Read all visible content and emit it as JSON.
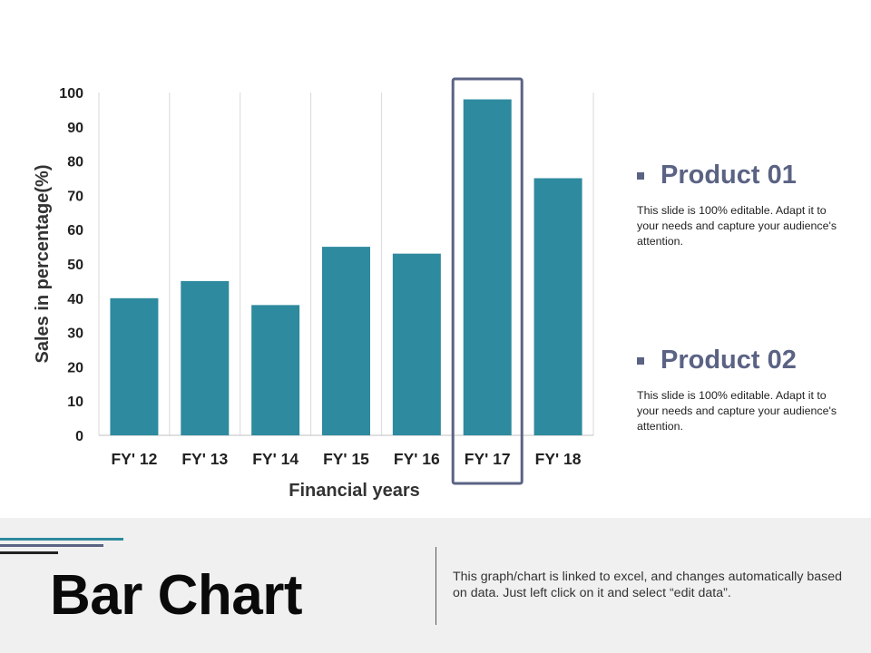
{
  "chart_data": {
    "type": "bar",
    "categories": [
      "FY' 12",
      "FY' 13",
      "FY' 14",
      "FY' 15",
      "FY' 16",
      "FY' 17",
      "FY' 18"
    ],
    "values": [
      40,
      45,
      38,
      55,
      53,
      98,
      75
    ],
    "xlabel": "Financial years",
    "ylabel": "Sales in percentage(%)",
    "ylim": [
      0,
      100
    ],
    "yticks": [
      0,
      10,
      20,
      30,
      40,
      50,
      60,
      70,
      80,
      90,
      100
    ],
    "highlight_category": "FY' 17",
    "grid": "vertical",
    "bar_color": "#2e8a9e",
    "highlight_color": "#5b6384"
  },
  "legend": [
    {
      "title": "Product 01",
      "description": "This slide is 100% editable. Adapt it to your needs and capture your audience's attention."
    },
    {
      "title": "Product 02",
      "description": "This slide is 100% editable. Adapt it to your needs and capture your audience's attention."
    }
  ],
  "footer": {
    "title": "Bar Chart",
    "description": "This graph/chart is linked to excel, and changes automatically based on data. Just left click on it and select “edit data”."
  },
  "colors": {
    "accent": "#2e8a9e",
    "secondary": "#5b6384",
    "footer_bg": "#f0f0f0"
  }
}
